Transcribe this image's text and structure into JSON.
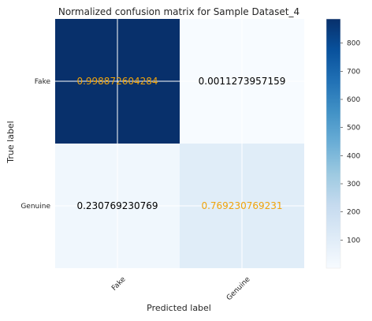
{
  "chart_data": {
    "type": "heatmap",
    "title": "Normalized confusion matrix for Sample Dataset_4",
    "xlabel": "Predicted label",
    "ylabel": "True label",
    "x_categories": [
      "Fake",
      "Genuine"
    ],
    "y_categories": [
      "Fake",
      "Genuine"
    ],
    "counts": [
      [
        886,
        1
      ],
      [
        30,
        100
      ]
    ],
    "cell_labels": [
      [
        "0.998872604284",
        "0.0011273957159"
      ],
      [
        "0.230769230769",
        "0.769230769231"
      ]
    ],
    "cell_label_colors": [
      [
        "#f0a30a",
        "#000000"
      ],
      [
        "#000000",
        "#f0a30a"
      ]
    ],
    "colormap": "Blues",
    "colorbar": {
      "range": [
        0,
        886
      ],
      "ticks": [
        100,
        200,
        300,
        400,
        500,
        600,
        700,
        800
      ]
    },
    "grid": true
  }
}
